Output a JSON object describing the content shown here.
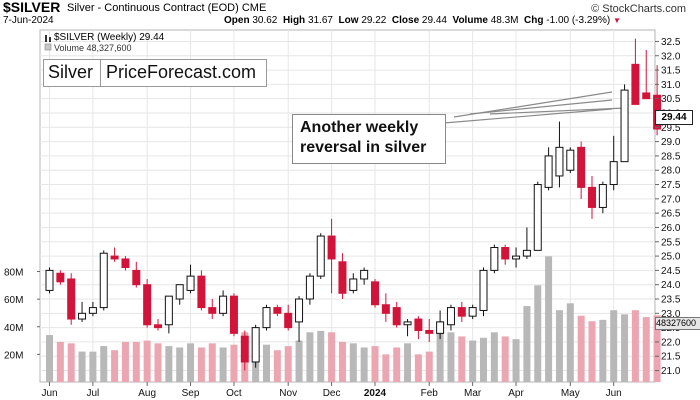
{
  "header": {
    "symbol": "$SILVER",
    "description": "Silver - Continuous Contract (EOD)  CME",
    "date": "7-Jun-2024",
    "open_label": "Open",
    "open": "30.62",
    "high_label": "High",
    "high": "31.67",
    "low_label": "Low",
    "low": "29.22",
    "close_label": "Close",
    "close": "29.44",
    "volume_label": "Volume",
    "volume": "48.3M",
    "chg_label": "Chg",
    "chg": "-1.00 (-3.29%)",
    "chg_marker": "▼",
    "brand": "© StockCharts.com"
  },
  "indicators": {
    "price_line": "$SILVER (Weekly) 29.44",
    "volume_line": "Volume 48,327,600"
  },
  "logo": {
    "left": "Silver",
    "right": "PriceForecast.com"
  },
  "callout": {
    "line1": "Another weekly",
    "line2": "reversal in silver"
  },
  "last_price": "29.44",
  "last_volume": "48327600",
  "colors": {
    "up": "#ffffff",
    "down": "#d2143a",
    "up_vol": "#b8b8b8",
    "down_vol": "#eba6b1",
    "grid": "#e6e6e6"
  },
  "chart_data": {
    "type": "candlestick",
    "period": "weekly",
    "y_ticks": [
      21.0,
      21.5,
      22.0,
      22.5,
      23.0,
      23.5,
      24.0,
      24.5,
      25.0,
      25.5,
      26.0,
      26.5,
      27.0,
      27.5,
      28.0,
      28.5,
      29.0,
      29.5,
      30.0,
      30.5,
      31.0,
      31.5,
      32.0,
      32.5
    ],
    "y_tick_labels": [
      "21.0",
      "21.5",
      "22.0",
      "22.5",
      "23.0",
      "23.5",
      "24.0",
      "24.5",
      "25.0",
      "25.5",
      "26.0",
      "26.5",
      "27.0",
      "27.5",
      "28.0",
      "28.5",
      "29.0",
      "29.5",
      "30.0",
      "30.5",
      "31.0",
      "31.5",
      "32.0",
      "32.5"
    ],
    "ylim": [
      20.6,
      32.9
    ],
    "volume_ticks": [
      20,
      40,
      60,
      80
    ],
    "volume_tick_labels": [
      "20M",
      "40M",
      "60M",
      "80M"
    ],
    "volume_max": 105,
    "x_labels": [
      "Jun",
      "Jul",
      "Aug",
      "Sep",
      "Oct",
      "Nov",
      "Dec",
      "2024",
      "Feb",
      "Mar",
      "Apr",
      "May",
      "Jun"
    ],
    "x_label_index": [
      0,
      4,
      9,
      13,
      17,
      22,
      26,
      30,
      35,
      39,
      43,
      48,
      52
    ],
    "bold_x_label": "2024",
    "candles": [
      {
        "o": 23.8,
        "h": 24.6,
        "l": 23.7,
        "c": 24.5,
        "v": 34
      },
      {
        "o": 24.4,
        "h": 24.5,
        "l": 24.0,
        "c": 24.1,
        "v": 29
      },
      {
        "o": 24.2,
        "h": 24.4,
        "l": 22.6,
        "c": 22.8,
        "v": 28
      },
      {
        "o": 22.8,
        "h": 23.4,
        "l": 22.7,
        "c": 23.0,
        "v": 22
      },
      {
        "o": 23.0,
        "h": 23.4,
        "l": 22.9,
        "c": 23.2,
        "v": 22
      },
      {
        "o": 23.2,
        "h": 25.2,
        "l": 23.1,
        "c": 25.1,
        "v": 26
      },
      {
        "o": 25.0,
        "h": 25.3,
        "l": 24.8,
        "c": 24.9,
        "v": 23
      },
      {
        "o": 24.9,
        "h": 25.0,
        "l": 24.5,
        "c": 24.6,
        "v": 29
      },
      {
        "o": 24.5,
        "h": 24.8,
        "l": 23.9,
        "c": 24.0,
        "v": 29
      },
      {
        "o": 24.0,
        "h": 24.2,
        "l": 22.5,
        "c": 22.6,
        "v": 30
      },
      {
        "o": 22.6,
        "h": 22.8,
        "l": 22.4,
        "c": 22.5,
        "v": 28
      },
      {
        "o": 22.6,
        "h": 23.6,
        "l": 22.3,
        "c": 23.6,
        "v": 26
      },
      {
        "o": 23.5,
        "h": 24.0,
        "l": 23.3,
        "c": 24.0,
        "v": 25
      },
      {
        "o": 23.8,
        "h": 24.7,
        "l": 23.7,
        "c": 24.3,
        "v": 28
      },
      {
        "o": 24.3,
        "h": 24.5,
        "l": 23.1,
        "c": 23.2,
        "v": 25
      },
      {
        "o": 23.2,
        "h": 23.5,
        "l": 22.8,
        "c": 23.0,
        "v": 28
      },
      {
        "o": 23.0,
        "h": 23.8,
        "l": 22.9,
        "c": 23.6,
        "v": 25
      },
      {
        "o": 23.6,
        "h": 23.7,
        "l": 22.2,
        "c": 22.3,
        "v": 27
      },
      {
        "o": 22.2,
        "h": 22.4,
        "l": 21.0,
        "c": 21.3,
        "v": 36
      },
      {
        "o": 21.3,
        "h": 22.6,
        "l": 21.1,
        "c": 22.5,
        "v": 38
      },
      {
        "o": 22.5,
        "h": 23.3,
        "l": 22.4,
        "c": 23.2,
        "v": 27
      },
      {
        "o": 23.2,
        "h": 23.3,
        "l": 22.9,
        "c": 23.0,
        "v": 23
      },
      {
        "o": 23.0,
        "h": 23.3,
        "l": 22.4,
        "c": 22.5,
        "v": 26
      },
      {
        "o": 22.7,
        "h": 23.6,
        "l": 22.0,
        "c": 23.5,
        "v": 30
      },
      {
        "o": 23.5,
        "h": 24.4,
        "l": 23.3,
        "c": 24.3,
        "v": 36
      },
      {
        "o": 24.3,
        "h": 25.8,
        "l": 24.2,
        "c": 25.7,
        "v": 37
      },
      {
        "o": 25.7,
        "h": 26.3,
        "l": 23.7,
        "c": 24.9,
        "v": 36
      },
      {
        "o": 24.8,
        "h": 25.1,
        "l": 23.5,
        "c": 23.7,
        "v": 29
      },
      {
        "o": 23.8,
        "h": 24.4,
        "l": 23.7,
        "c": 24.2,
        "v": 28
      },
      {
        "o": 24.2,
        "h": 24.6,
        "l": 24.0,
        "c": 24.5,
        "v": 25
      },
      {
        "o": 24.1,
        "h": 24.2,
        "l": 23.2,
        "c": 23.3,
        "v": 26
      },
      {
        "o": 23.3,
        "h": 23.7,
        "l": 22.7,
        "c": 23.0,
        "v": 20
      },
      {
        "o": 23.2,
        "h": 23.4,
        "l": 22.5,
        "c": 22.6,
        "v": 25
      },
      {
        "o": 22.6,
        "h": 22.8,
        "l": 22.2,
        "c": 22.7,
        "v": 28
      },
      {
        "o": 22.8,
        "h": 22.9,
        "l": 22.1,
        "c": 22.4,
        "v": 20
      },
      {
        "o": 22.4,
        "h": 22.8,
        "l": 22.0,
        "c": 22.3,
        "v": 22
      },
      {
        "o": 22.3,
        "h": 23.1,
        "l": 22.1,
        "c": 22.7,
        "v": 44
      },
      {
        "o": 22.6,
        "h": 23.3,
        "l": 22.4,
        "c": 23.2,
        "v": 36
      },
      {
        "o": 23.2,
        "h": 23.4,
        "l": 22.7,
        "c": 22.9,
        "v": 33
      },
      {
        "o": 22.9,
        "h": 23.3,
        "l": 22.8,
        "c": 23.2,
        "v": 30
      },
      {
        "o": 23.1,
        "h": 24.6,
        "l": 22.9,
        "c": 24.5,
        "v": 32
      },
      {
        "o": 24.5,
        "h": 25.4,
        "l": 24.4,
        "c": 25.3,
        "v": 36
      },
      {
        "o": 25.3,
        "h": 25.4,
        "l": 24.7,
        "c": 24.9,
        "v": 33
      },
      {
        "o": 24.9,
        "h": 25.3,
        "l": 24.6,
        "c": 25.0,
        "v": 31
      },
      {
        "o": 25.0,
        "h": 26.0,
        "l": 24.9,
        "c": 25.2,
        "v": 55
      },
      {
        "o": 25.2,
        "h": 27.6,
        "l": 25.2,
        "c": 27.5,
        "v": 70
      },
      {
        "o": 27.4,
        "h": 28.8,
        "l": 27.3,
        "c": 28.5,
        "v": 91
      },
      {
        "o": 27.8,
        "h": 29.7,
        "l": 27.4,
        "c": 28.8,
        "v": 52
      },
      {
        "o": 28.0,
        "h": 28.8,
        "l": 27.9,
        "c": 28.7,
        "v": 57
      },
      {
        "o": 28.8,
        "h": 29.0,
        "l": 27.0,
        "c": 27.4,
        "v": 48
      },
      {
        "o": 27.4,
        "h": 27.8,
        "l": 26.3,
        "c": 26.7,
        "v": 44
      },
      {
        "o": 26.7,
        "h": 27.6,
        "l": 26.5,
        "c": 27.5,
        "v": 45
      },
      {
        "o": 27.5,
        "h": 29.2,
        "l": 27.3,
        "c": 28.3,
        "v": 52
      },
      {
        "o": 28.3,
        "h": 31.0,
        "l": 28.3,
        "c": 30.8,
        "v": 49
      },
      {
        "o": 31.7,
        "h": 32.6,
        "l": 30.3,
        "c": 30.3,
        "v": 52
      },
      {
        "o": 30.7,
        "h": 32.2,
        "l": 30.6,
        "c": 30.5,
        "v": 47
      },
      {
        "o": 30.62,
        "h": 31.67,
        "l": 29.22,
        "c": 29.44,
        "v": 48.3
      }
    ]
  }
}
